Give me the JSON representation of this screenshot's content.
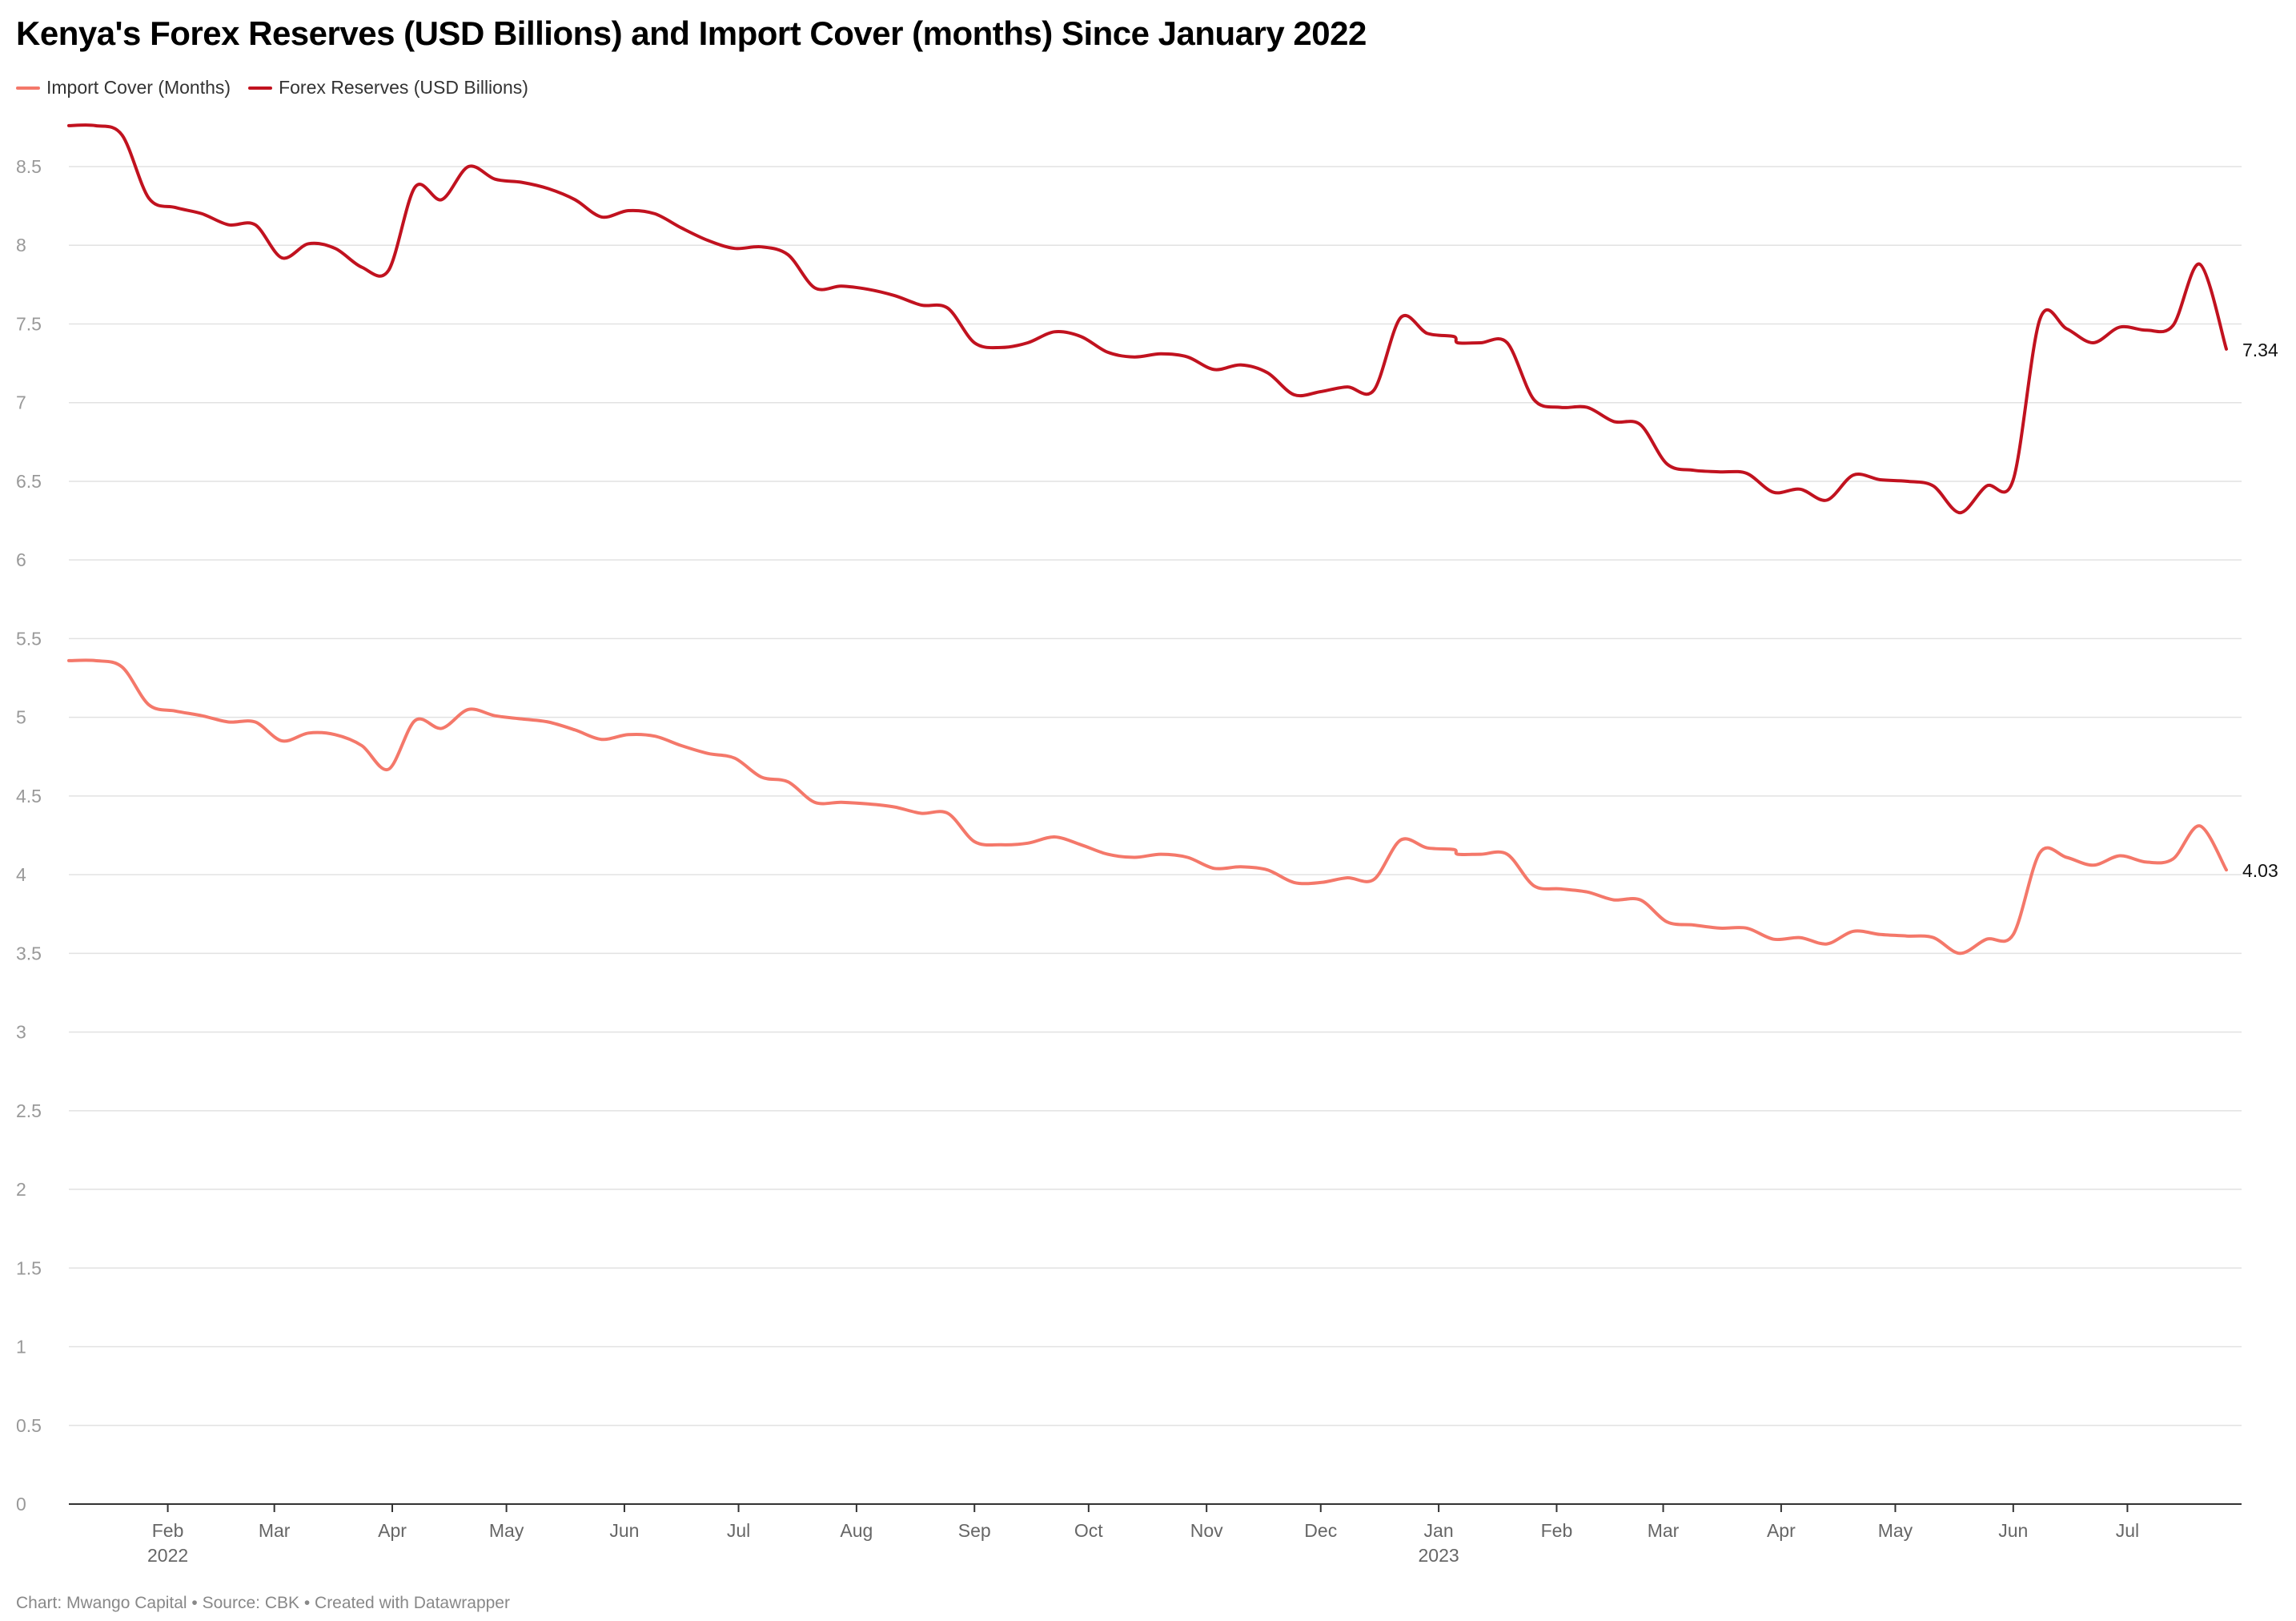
{
  "chart_data": {
    "type": "line",
    "title": "Kenya's Forex Reserves (USD Billions) and Import Cover (months) Since January 2022",
    "xlabel": "",
    "ylabel": "",
    "ylim": [
      0,
      8.5
    ],
    "yticks": [
      0,
      0.5,
      1,
      1.5,
      2,
      2.5,
      3,
      3.5,
      4,
      4.5,
      5,
      5.5,
      6,
      6.5,
      7,
      7.5,
      8,
      8.5
    ],
    "ytick_labels": [
      "0",
      "0.5",
      "1",
      "1.5",
      "2",
      "2.5",
      "3",
      "3.5",
      "4",
      "4.5",
      "5",
      "5.5",
      "6",
      "6.5",
      "7",
      "7.5",
      "8",
      "8.5"
    ],
    "xlim": [
      "2022-01-06",
      "2023-07-31"
    ],
    "xticks": [
      {
        "date": "2022-02-01",
        "label": "Feb",
        "sub": "2022"
      },
      {
        "date": "2022-03-01",
        "label": "Mar"
      },
      {
        "date": "2022-04-01",
        "label": "Apr"
      },
      {
        "date": "2022-05-01",
        "label": "May"
      },
      {
        "date": "2022-06-01",
        "label": "Jun"
      },
      {
        "date": "2022-07-01",
        "label": "Jul"
      },
      {
        "date": "2022-08-01",
        "label": "Aug"
      },
      {
        "date": "2022-09-01",
        "label": "Sep"
      },
      {
        "date": "2022-10-01",
        "label": "Oct"
      },
      {
        "date": "2022-11-01",
        "label": "Nov"
      },
      {
        "date": "2022-12-01",
        "label": "Dec"
      },
      {
        "date": "2023-01-01",
        "label": "Jan",
        "sub": "2023"
      },
      {
        "date": "2023-02-01",
        "label": "Feb"
      },
      {
        "date": "2023-03-01",
        "label": "Mar"
      },
      {
        "date": "2023-04-01",
        "label": "Apr"
      },
      {
        "date": "2023-05-01",
        "label": "May"
      },
      {
        "date": "2023-06-01",
        "label": "Jun"
      },
      {
        "date": "2023-07-01",
        "label": "Jul"
      }
    ],
    "grid": true,
    "legend_position": "top-left",
    "series": [
      {
        "name": "Import Cover (Months)",
        "color": "#f4786a",
        "end_label": "4.03",
        "points": [
          [
            "2022-01-06",
            5.36
          ],
          [
            "2022-01-13",
            5.36
          ],
          [
            "2022-01-20",
            5.32
          ],
          [
            "2022-01-27",
            5.08
          ],
          [
            "2022-02-03",
            5.04
          ],
          [
            "2022-02-10",
            5.01
          ],
          [
            "2022-02-17",
            4.97
          ],
          [
            "2022-02-24",
            4.97
          ],
          [
            "2022-03-03",
            4.85
          ],
          [
            "2022-03-10",
            4.9
          ],
          [
            "2022-03-17",
            4.89
          ],
          [
            "2022-03-24",
            4.82
          ],
          [
            "2022-03-31",
            4.67
          ],
          [
            "2022-04-07",
            4.98
          ],
          [
            "2022-04-14",
            4.93
          ],
          [
            "2022-04-21",
            5.05
          ],
          [
            "2022-04-28",
            5.01
          ],
          [
            "2022-05-05",
            4.99
          ],
          [
            "2022-05-12",
            4.97
          ],
          [
            "2022-05-19",
            4.92
          ],
          [
            "2022-05-26",
            4.86
          ],
          [
            "2022-06-02",
            4.89
          ],
          [
            "2022-06-09",
            4.88
          ],
          [
            "2022-06-16",
            4.82
          ],
          [
            "2022-06-23",
            4.77
          ],
          [
            "2022-06-30",
            4.74
          ],
          [
            "2022-07-07",
            4.62
          ],
          [
            "2022-07-14",
            4.59
          ],
          [
            "2022-07-21",
            4.46
          ],
          [
            "2022-07-28",
            4.46
          ],
          [
            "2022-08-04",
            4.45
          ],
          [
            "2022-08-11",
            4.43
          ],
          [
            "2022-08-18",
            4.39
          ],
          [
            "2022-08-25",
            4.39
          ],
          [
            "2022-09-01",
            4.21
          ],
          [
            "2022-09-08",
            4.19
          ],
          [
            "2022-09-15",
            4.2
          ],
          [
            "2022-09-22",
            4.24
          ],
          [
            "2022-09-29",
            4.19
          ],
          [
            "2022-10-06",
            4.13
          ],
          [
            "2022-10-13",
            4.11
          ],
          [
            "2022-10-20",
            4.13
          ],
          [
            "2022-10-27",
            4.11
          ],
          [
            "2022-11-03",
            4.04
          ],
          [
            "2022-11-10",
            4.05
          ],
          [
            "2022-11-17",
            4.03
          ],
          [
            "2022-11-24",
            3.95
          ],
          [
            "2022-12-01",
            3.95
          ],
          [
            "2022-12-08",
            3.98
          ],
          [
            "2022-12-15",
            3.97
          ],
          [
            "2022-12-22",
            4.22
          ],
          [
            "2022-12-29",
            4.17
          ],
          [
            "2023-01-05",
            4.16
          ],
          [
            "2023-01-06",
            4.13
          ],
          [
            "2023-01-12",
            4.13
          ],
          [
            "2023-01-19",
            4.13
          ],
          [
            "2023-01-26",
            3.93
          ],
          [
            "2023-02-02",
            3.91
          ],
          [
            "2023-02-09",
            3.89
          ],
          [
            "2023-02-16",
            3.84
          ],
          [
            "2023-02-23",
            3.84
          ],
          [
            "2023-03-02",
            3.7
          ],
          [
            "2023-03-09",
            3.68
          ],
          [
            "2023-03-16",
            3.66
          ],
          [
            "2023-03-23",
            3.66
          ],
          [
            "2023-03-30",
            3.59
          ],
          [
            "2023-04-06",
            3.6
          ],
          [
            "2023-04-13",
            3.56
          ],
          [
            "2023-04-20",
            3.64
          ],
          [
            "2023-04-27",
            3.62
          ],
          [
            "2023-05-04",
            3.61
          ],
          [
            "2023-05-11",
            3.6
          ],
          [
            "2023-05-18",
            3.5
          ],
          [
            "2023-05-25",
            3.59
          ],
          [
            "2023-06-01",
            3.62
          ],
          [
            "2023-06-08",
            4.14
          ],
          [
            "2023-06-15",
            4.11
          ],
          [
            "2023-06-22",
            4.06
          ],
          [
            "2023-06-29",
            4.12
          ],
          [
            "2023-07-06",
            4.08
          ],
          [
            "2023-07-13",
            4.1
          ],
          [
            "2023-07-20",
            4.31
          ],
          [
            "2023-07-27",
            4.03
          ]
        ]
      },
      {
        "name": "Forex Reserves (USD Billions)",
        "color": "#c1121f",
        "end_label": "7.34",
        "points": [
          [
            "2022-01-06",
            8.76
          ],
          [
            "2022-01-13",
            8.76
          ],
          [
            "2022-01-20",
            8.7
          ],
          [
            "2022-01-27",
            8.3
          ],
          [
            "2022-02-03",
            8.24
          ],
          [
            "2022-02-10",
            8.2
          ],
          [
            "2022-02-17",
            8.13
          ],
          [
            "2022-02-24",
            8.13
          ],
          [
            "2022-03-03",
            7.92
          ],
          [
            "2022-03-10",
            8.01
          ],
          [
            "2022-03-17",
            7.98
          ],
          [
            "2022-03-24",
            7.86
          ],
          [
            "2022-03-31",
            7.84
          ],
          [
            "2022-04-07",
            8.37
          ],
          [
            "2022-04-14",
            8.29
          ],
          [
            "2022-04-21",
            8.5
          ],
          [
            "2022-04-28",
            8.42
          ],
          [
            "2022-05-05",
            8.4
          ],
          [
            "2022-05-12",
            8.36
          ],
          [
            "2022-05-19",
            8.29
          ],
          [
            "2022-05-26",
            8.18
          ],
          [
            "2022-06-02",
            8.22
          ],
          [
            "2022-06-09",
            8.2
          ],
          [
            "2022-06-16",
            8.11
          ],
          [
            "2022-06-23",
            8.03
          ],
          [
            "2022-06-30",
            7.98
          ],
          [
            "2022-07-07",
            7.99
          ],
          [
            "2022-07-14",
            7.94
          ],
          [
            "2022-07-21",
            7.73
          ],
          [
            "2022-07-28",
            7.74
          ],
          [
            "2022-08-04",
            7.72
          ],
          [
            "2022-08-11",
            7.68
          ],
          [
            "2022-08-18",
            7.62
          ],
          [
            "2022-08-25",
            7.6
          ],
          [
            "2022-09-01",
            7.38
          ],
          [
            "2022-09-08",
            7.35
          ],
          [
            "2022-09-15",
            7.38
          ],
          [
            "2022-09-22",
            7.45
          ],
          [
            "2022-09-29",
            7.42
          ],
          [
            "2022-10-06",
            7.32
          ],
          [
            "2022-10-13",
            7.29
          ],
          [
            "2022-10-20",
            7.31
          ],
          [
            "2022-10-27",
            7.29
          ],
          [
            "2022-11-03",
            7.21
          ],
          [
            "2022-11-10",
            7.24
          ],
          [
            "2022-11-17",
            7.19
          ],
          [
            "2022-11-24",
            7.05
          ],
          [
            "2022-12-01",
            7.07
          ],
          [
            "2022-12-08",
            7.1
          ],
          [
            "2022-12-15",
            7.08
          ],
          [
            "2022-12-22",
            7.54
          ],
          [
            "2022-12-29",
            7.44
          ],
          [
            "2023-01-05",
            7.42
          ],
          [
            "2023-01-06",
            7.38
          ],
          [
            "2023-01-12",
            7.38
          ],
          [
            "2023-01-19",
            7.38
          ],
          [
            "2023-01-26",
            7.02
          ],
          [
            "2023-02-02",
            6.97
          ],
          [
            "2023-02-09",
            6.97
          ],
          [
            "2023-02-16",
            6.88
          ],
          [
            "2023-02-23",
            6.86
          ],
          [
            "2023-03-02",
            6.61
          ],
          [
            "2023-03-09",
            6.57
          ],
          [
            "2023-03-16",
            6.56
          ],
          [
            "2023-03-23",
            6.55
          ],
          [
            "2023-03-30",
            6.43
          ],
          [
            "2023-04-06",
            6.45
          ],
          [
            "2023-04-13",
            6.38
          ],
          [
            "2023-04-20",
            6.54
          ],
          [
            "2023-04-27",
            6.51
          ],
          [
            "2023-05-04",
            6.5
          ],
          [
            "2023-05-11",
            6.47
          ],
          [
            "2023-05-18",
            6.3
          ],
          [
            "2023-05-25",
            6.47
          ],
          [
            "2023-06-01",
            6.51
          ],
          [
            "2023-06-08",
            7.53
          ],
          [
            "2023-06-15",
            7.47
          ],
          [
            "2023-06-22",
            7.38
          ],
          [
            "2023-06-29",
            7.48
          ],
          [
            "2023-07-06",
            7.46
          ],
          [
            "2023-07-13",
            7.49
          ],
          [
            "2023-07-20",
            7.88
          ],
          [
            "2023-07-27",
            7.34
          ]
        ]
      }
    ],
    "footer": "Chart: Mwango Capital • Source: CBK • Created with Datawrapper"
  }
}
